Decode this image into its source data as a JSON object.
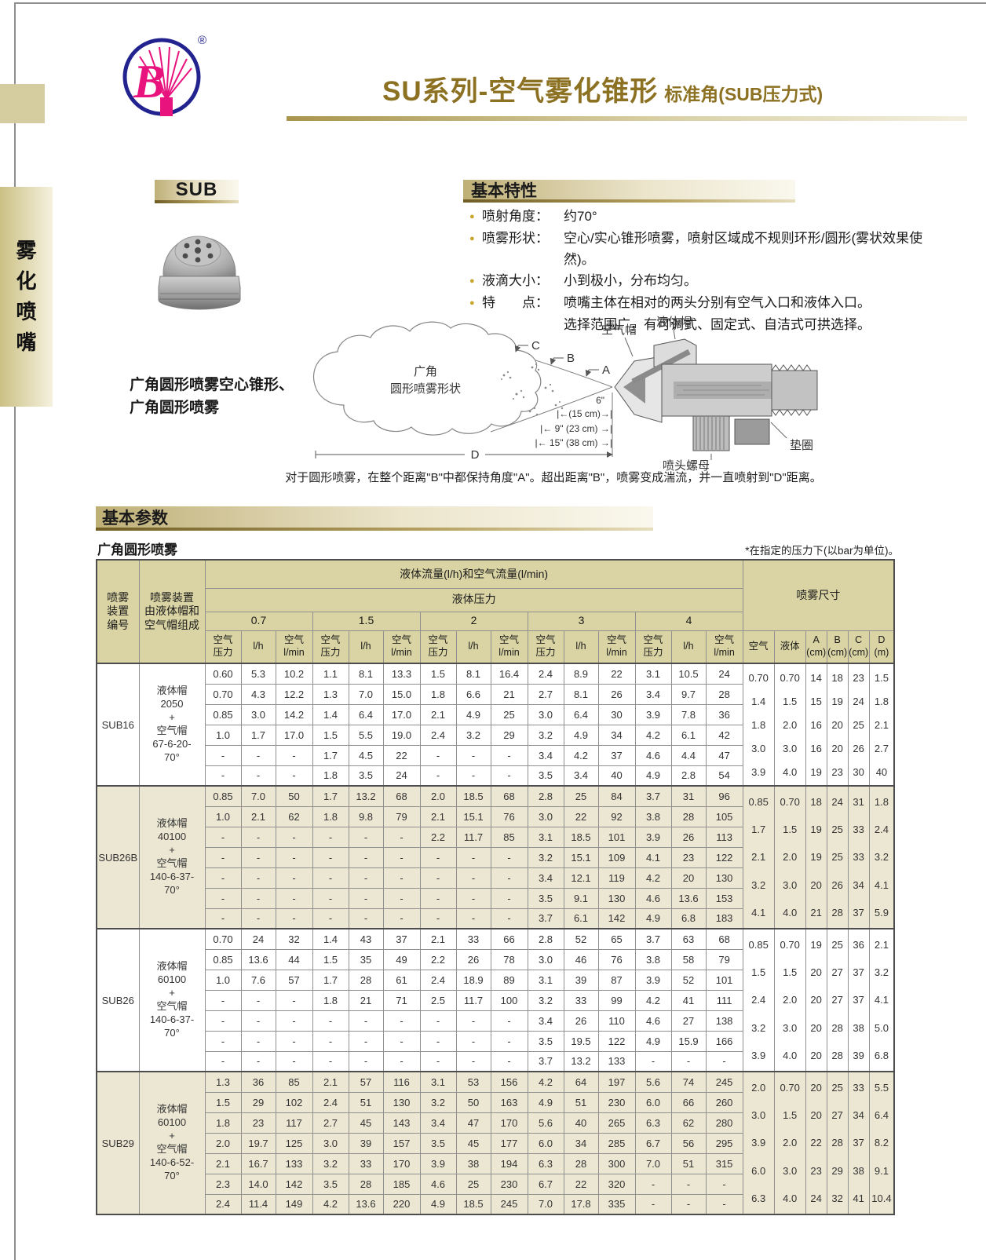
{
  "page": {
    "title_main": "SU系列-空气雾化锥形",
    "title_sub": "标准角(SUB压力式)",
    "sidebar_vertical_text": "雾化喷嘴",
    "logo_letter": "B",
    "logo_registered": "®"
  },
  "product": {
    "label": "SUB",
    "caption_line1": "广角圆形喷雾空心锥形、",
    "caption_line2": "广角圆形喷雾"
  },
  "features": {
    "heading": "基本特性",
    "items": [
      {
        "label": "喷射角度：",
        "text": "约70°"
      },
      {
        "label": "喷雾形状：",
        "text": "空心/实心锥形喷雾，喷射区域成不规则环形/圆形(雾状效果使然)。"
      },
      {
        "label": "液滴大小：",
        "text": "小到极小，分布均匀。"
      },
      {
        "label": "特　　点：",
        "text": "喷嘴主体在相对的两头分别有空气入口和液体入口。",
        "text2": "选择范围广，有可调式、固定式、自洁式可拱选择。"
      }
    ]
  },
  "diagram": {
    "cloud_label_line1": "广角",
    "cloud_label_line2": "圆形喷雾形状",
    "marker_c": "C",
    "marker_b": "B",
    "marker_a": "A",
    "marker_d": "D",
    "dist_6in": "6\"",
    "dist_15cm": "|←(15 cm)→|",
    "dist_23cm": "|← 9\" (23 cm) →|",
    "dist_38cm": "|← 15\" (38 cm) →|",
    "label_air_cap": "空气帽",
    "label_liquid_cap": "液体帽",
    "label_gasket": "垫圈",
    "label_nut": "喷头螺母",
    "caption": "对于圆形喷雾，在整个距离\"B\"中都保持角度\"A\"。超出距离\"B\"，喷雾变成湍流，并一直喷射到\"D\"距离。"
  },
  "parameters": {
    "heading": "基本参数",
    "table_title": "广角圆形喷雾",
    "note": "*在指定的压力下(以bar为单位)。",
    "table": {
      "col1_header": "喷雾\n装置\n编号",
      "col2_header": "喷雾装置\n由液体帽和\n空气帽组成",
      "flow_header": "液体流量(l/h)和空气流量(l/min)",
      "pressure_header": "液体压力",
      "pressures": [
        "0.7",
        "1.5",
        "2",
        "3",
        "4"
      ],
      "sub_headers": [
        "空气\n压力",
        "l/h",
        "空气\nl/min"
      ],
      "size_header": "喷雾尺寸",
      "size_sub_headers": [
        "空气",
        "液体",
        "A\n(cm)",
        "B\n(cm)",
        "C\n(cm)",
        "D\n(m)"
      ],
      "groups": [
        {
          "id": "SUB16",
          "composition": "液体帽\n2050\n+\n空气帽\n67-6-20-\n70°",
          "shaded": false,
          "rows": [
            [
              "0.60",
              "5.3",
              "10.2",
              "1.1",
              "8.1",
              "13.3",
              "1.5",
              "8.1",
              "16.4",
              "2.4",
              "8.9",
              "22",
              "3.1",
              "10.5",
              "24"
            ],
            [
              "0.70",
              "4.3",
              "12.2",
              "1.3",
              "7.0",
              "15.0",
              "1.8",
              "6.6",
              "21",
              "2.7",
              "8.1",
              "26",
              "3.4",
              "9.7",
              "28"
            ],
            [
              "0.85",
              "3.0",
              "14.2",
              "1.4",
              "6.4",
              "17.0",
              "2.1",
              "4.9",
              "25",
              "3.0",
              "6.4",
              "30",
              "3.9",
              "7.8",
              "36"
            ],
            [
              "1.0",
              "1.7",
              "17.0",
              "1.5",
              "5.5",
              "19.0",
              "2.4",
              "3.2",
              "29",
              "3.2",
              "4.9",
              "34",
              "4.2",
              "6.1",
              "42"
            ],
            [
              "-",
              "-",
              "-",
              "1.7",
              "4.5",
              "22",
              "-",
              "-",
              "-",
              "3.4",
              "4.2",
              "37",
              "4.6",
              "4.4",
              "47"
            ],
            [
              "-",
              "-",
              "-",
              "1.8",
              "3.5",
              "24",
              "-",
              "-",
              "-",
              "3.5",
              "3.4",
              "40",
              "4.9",
              "2.8",
              "54"
            ]
          ],
          "sizes": [
            [
              "0.70",
              "0.70",
              "14",
              "18",
              "23",
              "1.5"
            ],
            [
              "1.4",
              "1.5",
              "15",
              "19",
              "24",
              "1.8"
            ],
            [
              "1.8",
              "2.0",
              "16",
              "20",
              "25",
              "2.1"
            ],
            [
              "3.0",
              "3.0",
              "16",
              "20",
              "26",
              "2.7"
            ],
            [
              "3.9",
              "4.0",
              "19",
              "23",
              "30",
              "40"
            ]
          ]
        },
        {
          "id": "SUB26B",
          "composition": "液体帽\n40100\n+\n空气帽\n140-6-37-\n70°",
          "shaded": true,
          "rows": [
            [
              "0.85",
              "7.0",
              "50",
              "1.7",
              "13.2",
              "68",
              "2.0",
              "18.5",
              "68",
              "2.8",
              "25",
              "84",
              "3.7",
              "31",
              "96"
            ],
            [
              "1.0",
              "2.1",
              "62",
              "1.8",
              "9.8",
              "79",
              "2.1",
              "15.1",
              "76",
              "3.0",
              "22",
              "92",
              "3.8",
              "28",
              "105"
            ],
            [
              "-",
              "-",
              "-",
              "-",
              "-",
              "-",
              "2.2",
              "11.7",
              "85",
              "3.1",
              "18.5",
              "101",
              "3.9",
              "26",
              "113"
            ],
            [
              "-",
              "-",
              "-",
              "-",
              "-",
              "-",
              "-",
              "-",
              "-",
              "3.2",
              "15.1",
              "109",
              "4.1",
              "23",
              "122"
            ],
            [
              "-",
              "-",
              "-",
              "-",
              "-",
              "-",
              "-",
              "-",
              "-",
              "3.4",
              "12.1",
              "119",
              "4.2",
              "20",
              "130"
            ],
            [
              "-",
              "-",
              "-",
              "-",
              "-",
              "-",
              "-",
              "-",
              "-",
              "3.5",
              "9.1",
              "130",
              "4.6",
              "13.6",
              "153"
            ],
            [
              "-",
              "-",
              "-",
              "-",
              "-",
              "-",
              "-",
              "-",
              "-",
              "3.7",
              "6.1",
              "142",
              "4.9",
              "6.8",
              "183"
            ]
          ],
          "sizes": [
            [
              "0.85",
              "0.70",
              "18",
              "24",
              "31",
              "1.8"
            ],
            [
              "1.7",
              "1.5",
              "19",
              "25",
              "33",
              "2.4"
            ],
            [
              "2.1",
              "2.0",
              "19",
              "25",
              "33",
              "3.2"
            ],
            [
              "3.2",
              "3.0",
              "20",
              "26",
              "34",
              "4.1"
            ],
            [
              "4.1",
              "4.0",
              "21",
              "28",
              "37",
              "5.9"
            ]
          ]
        },
        {
          "id": "SUB26",
          "composition": "液体帽\n60100\n+\n空气帽\n140-6-37-\n70°",
          "shaded": false,
          "rows": [
            [
              "0.70",
              "24",
              "32",
              "1.4",
              "43",
              "37",
              "2.1",
              "33",
              "66",
              "2.8",
              "52",
              "65",
              "3.7",
              "63",
              "68"
            ],
            [
              "0.85",
              "13.6",
              "44",
              "1.5",
              "35",
              "49",
              "2.2",
              "26",
              "78",
              "3.0",
              "46",
              "76",
              "3.8",
              "58",
              "79"
            ],
            [
              "1.0",
              "7.6",
              "57",
              "1.7",
              "28",
              "61",
              "2.4",
              "18.9",
              "89",
              "3.1",
              "39",
              "87",
              "3.9",
              "52",
              "101"
            ],
            [
              "-",
              "-",
              "-",
              "1.8",
              "21",
              "71",
              "2.5",
              "11.7",
              "100",
              "3.2",
              "33",
              "99",
              "4.2",
              "41",
              "111"
            ],
            [
              "-",
              "-",
              "-",
              "-",
              "-",
              "-",
              "-",
              "-",
              "-",
              "3.4",
              "26",
              "110",
              "4.6",
              "27",
              "138"
            ],
            [
              "-",
              "-",
              "-",
              "-",
              "-",
              "-",
              "-",
              "-",
              "-",
              "3.5",
              "19.5",
              "122",
              "4.9",
              "15.9",
              "166"
            ],
            [
              "-",
              "-",
              "-",
              "-",
              "-",
              "-",
              "-",
              "-",
              "-",
              "3.7",
              "13.2",
              "133",
              "-",
              "-",
              "-"
            ]
          ],
          "sizes": [
            [
              "0.85",
              "0.70",
              "19",
              "25",
              "36",
              "2.1"
            ],
            [
              "1.5",
              "1.5",
              "20",
              "27",
              "37",
              "3.2"
            ],
            [
              "2.4",
              "2.0",
              "20",
              "27",
              "37",
              "4.1"
            ],
            [
              "3.2",
              "3.0",
              "20",
              "28",
              "38",
              "5.0"
            ],
            [
              "3.9",
              "4.0",
              "20",
              "28",
              "39",
              "6.8"
            ]
          ]
        },
        {
          "id": "SUB29",
          "composition": "液体帽\n60100\n+\n空气帽\n140-6-52-\n70°",
          "shaded": true,
          "rows": [
            [
              "1.3",
              "36",
              "85",
              "2.1",
              "57",
              "116",
              "3.1",
              "53",
              "156",
              "4.2",
              "64",
              "197",
              "5.6",
              "74",
              "245"
            ],
            [
              "1.5",
              "29",
              "102",
              "2.4",
              "51",
              "130",
              "3.2",
              "50",
              "163",
              "4.9",
              "51",
              "230",
              "6.0",
              "66",
              "260"
            ],
            [
              "1.8",
              "23",
              "117",
              "2.7",
              "45",
              "143",
              "3.4",
              "47",
              "170",
              "5.6",
              "40",
              "265",
              "6.3",
              "62",
              "280"
            ],
            [
              "2.0",
              "19.7",
              "125",
              "3.0",
              "39",
              "157",
              "3.5",
              "45",
              "177",
              "6.0",
              "34",
              "285",
              "6.7",
              "56",
              "295"
            ],
            [
              "2.1",
              "16.7",
              "133",
              "3.2",
              "33",
              "170",
              "3.9",
              "38",
              "194",
              "6.3",
              "28",
              "300",
              "7.0",
              "51",
              "315"
            ],
            [
              "2.3",
              "14.0",
              "142",
              "3.5",
              "28",
              "185",
              "4.6",
              "25",
              "230",
              "6.7",
              "22",
              "320",
              "-",
              "-",
              "-"
            ],
            [
              "2.4",
              "11.4",
              "149",
              "4.2",
              "13.6",
              "220",
              "4.9",
              "18.5",
              "245",
              "7.0",
              "17.8",
              "335",
              "-",
              "-",
              "-"
            ]
          ],
          "sizes": [
            [
              "2.0",
              "0.70",
              "20",
              "25",
              "33",
              "5.5"
            ],
            [
              "3.0",
              "1.5",
              "20",
              "27",
              "34",
              "6.4"
            ],
            [
              "3.9",
              "2.0",
              "22",
              "28",
              "37",
              "8.2"
            ],
            [
              "6.0",
              "3.0",
              "23",
              "29",
              "38",
              "9.1"
            ],
            [
              "6.3",
              "4.0",
              "24",
              "32",
              "41",
              "10.4"
            ]
          ]
        }
      ]
    }
  },
  "colors": {
    "accent_gold": "#8d7122",
    "header_khaki": "#dad4a4",
    "shaded_row": "#ece7d3",
    "logo_blue": "#22238f",
    "logo_pink": "#e8137d"
  }
}
